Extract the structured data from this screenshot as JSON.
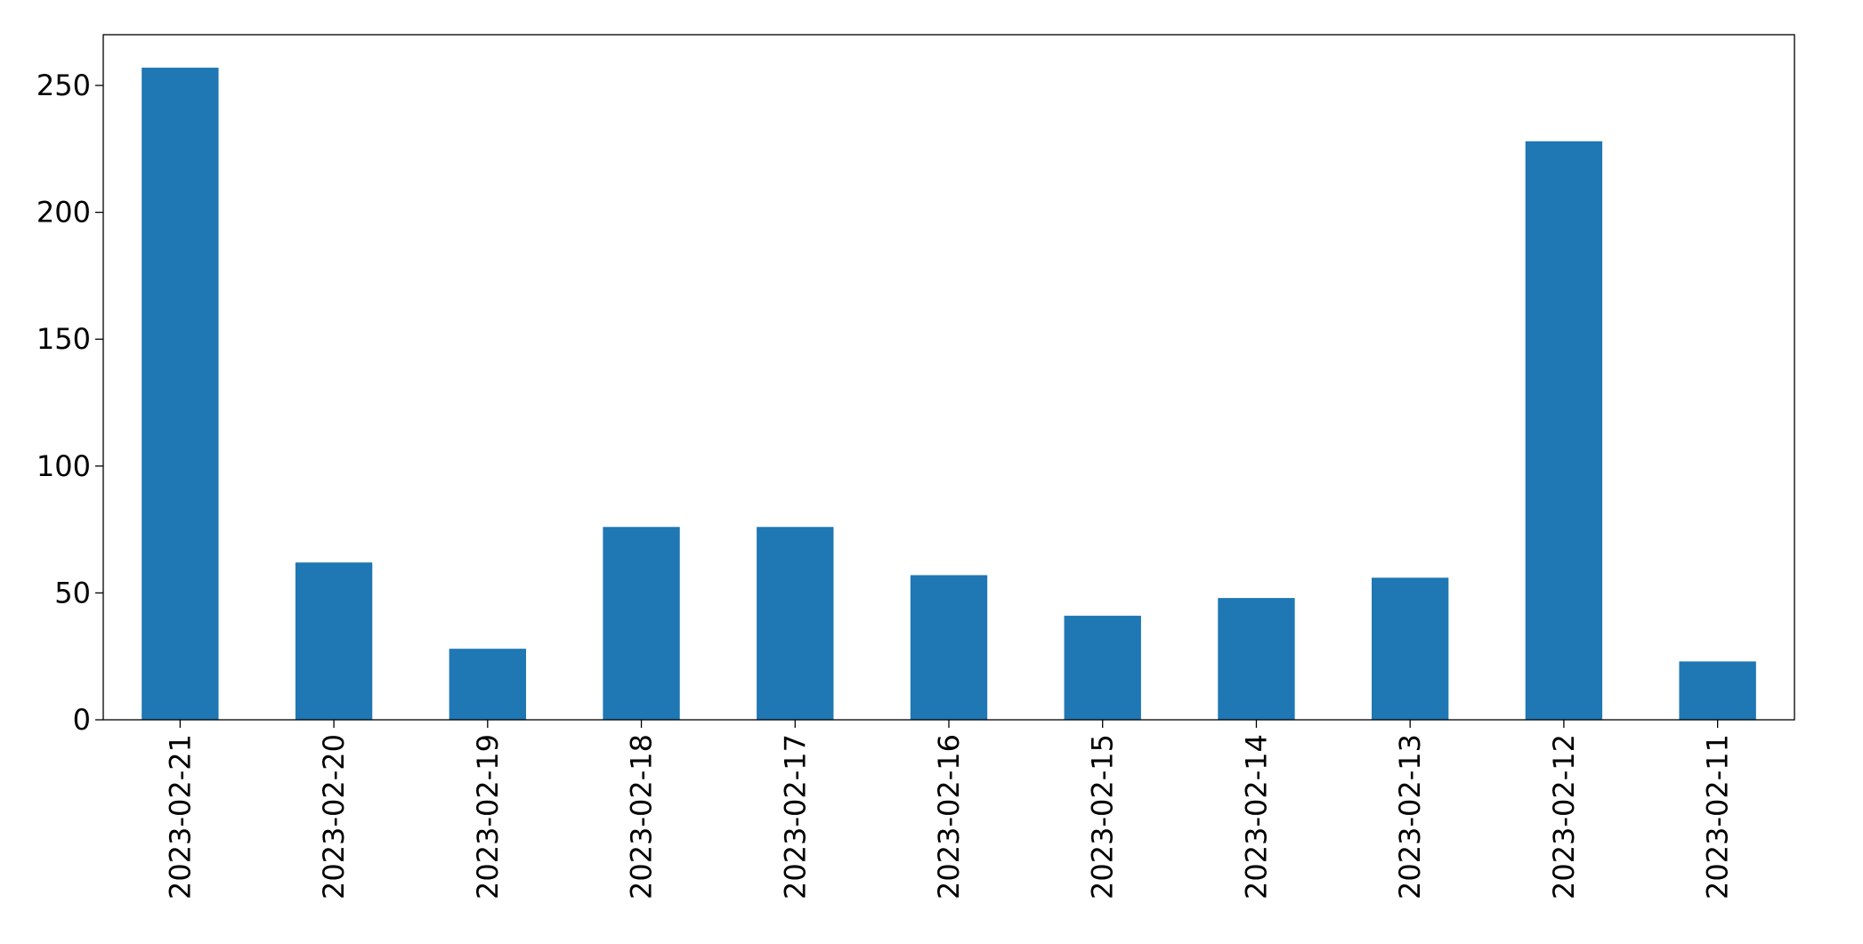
{
  "chart_data": {
    "type": "bar",
    "categories": [
      "2023-02-21",
      "2023-02-20",
      "2023-02-19",
      "2023-02-18",
      "2023-02-17",
      "2023-02-16",
      "2023-02-15",
      "2023-02-14",
      "2023-02-13",
      "2023-02-12",
      "2023-02-11"
    ],
    "values": [
      257,
      62,
      28,
      76,
      76,
      57,
      41,
      48,
      56,
      228,
      23
    ],
    "color": "#1f77b4",
    "ylim": [
      0,
      270
    ],
    "yticks": [
      0,
      50,
      100,
      150,
      200,
      250
    ],
    "grid": false
  }
}
